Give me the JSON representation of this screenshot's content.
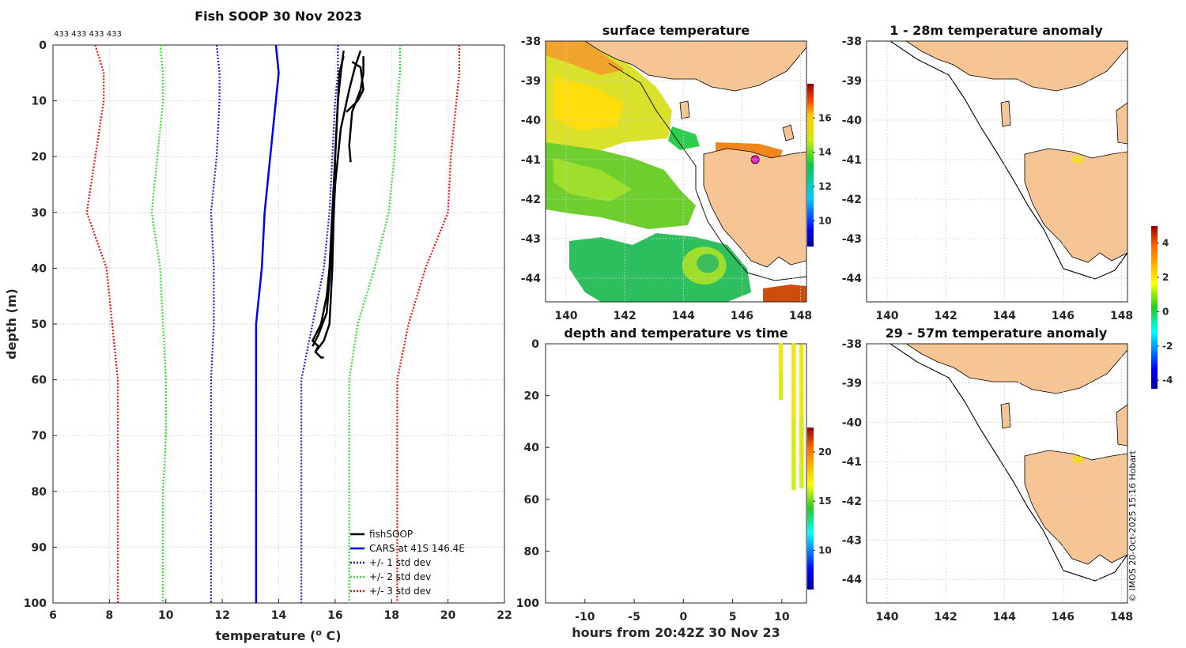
{
  "figure_title": "Fish SOOP 30 Nov 2023",
  "profile_ids": "433 433 433 433",
  "copyright": "© IMOS 20-Oct-2025 15:16 Hobart",
  "colors": {
    "land": "#f7c594",
    "cars": "#0000ee",
    "std1": "#2020d0",
    "std2": "#33dd33",
    "std3": "#ee1111",
    "fish": "#000000",
    "marker": "#ee22cc"
  },
  "chart_data": [
    {
      "id": "profile",
      "type": "line",
      "title": "Fish SOOP 30 Nov 2023",
      "xlabel": "temperature (",
      "xlabel_sup": "o",
      "xlabel_tail": " C)",
      "ylabel": "depth (m)",
      "xlim": [
        6,
        22
      ],
      "ylim": [
        0,
        100
      ],
      "xticks": [
        "6",
        "8",
        "10",
        "12",
        "14",
        "16",
        "18",
        "20",
        "22"
      ],
      "yticks": [
        "0",
        "10",
        "20",
        "30",
        "40",
        "50",
        "60",
        "70",
        "80",
        "90",
        "100"
      ],
      "legend": [
        "fishSOOP",
        "CARS at 41S 146.4E",
        "+/- 1 std dev",
        "+/- 2 std dev",
        "+/- 3 std dev"
      ],
      "series": [
        {
          "name": "CARS at 41S 146.4E",
          "style": "solid",
          "color": "#0000ee",
          "x": [
            13.9,
            14.0,
            13.9,
            13.7,
            13.5,
            13.4,
            13.2,
            13.2,
            13.2,
            13.2,
            13.2
          ],
          "y": [
            0,
            5,
            10,
            20,
            30,
            40,
            50,
            60,
            70,
            80,
            100
          ]
        },
        {
          "name": "-1 std",
          "style": "dot",
          "color": "#2020d0",
          "x": [
            11.8,
            11.9,
            11.9,
            11.8,
            11.6,
            11.7,
            11.7,
            11.6,
            11.6,
            11.6,
            11.6
          ],
          "y": [
            0,
            5,
            10,
            20,
            30,
            40,
            50,
            60,
            70,
            80,
            100
          ]
        },
        {
          "name": "+1 std",
          "style": "dot",
          "color": "#2020d0",
          "x": [
            16.1,
            16.1,
            16.0,
            15.9,
            15.8,
            15.6,
            15.2,
            14.8,
            14.8,
            14.8,
            14.8
          ],
          "y": [
            0,
            5,
            10,
            20,
            30,
            40,
            50,
            60,
            70,
            80,
            100
          ]
        },
        {
          "name": "-2 std",
          "style": "dot",
          "color": "#33dd33",
          "x": [
            9.8,
            9.9,
            9.9,
            9.7,
            9.5,
            9.8,
            9.9,
            10.0,
            10.0,
            9.9,
            9.9
          ],
          "y": [
            0,
            5,
            10,
            20,
            30,
            40,
            50,
            60,
            70,
            80,
            100
          ]
        },
        {
          "name": "+2 std",
          "style": "dot",
          "color": "#33dd33",
          "x": [
            18.3,
            18.3,
            18.2,
            18.1,
            17.9,
            17.4,
            16.8,
            16.5,
            16.5,
            16.5,
            16.5
          ],
          "y": [
            0,
            5,
            10,
            20,
            30,
            40,
            50,
            60,
            70,
            80,
            100
          ]
        },
        {
          "name": "-3 std",
          "style": "dot",
          "color": "#ee1111",
          "x": [
            7.5,
            7.8,
            7.8,
            7.5,
            7.2,
            7.9,
            8.1,
            8.3,
            8.3,
            8.3,
            8.3
          ],
          "y": [
            0,
            5,
            10,
            20,
            30,
            40,
            50,
            60,
            70,
            80,
            100
          ]
        },
        {
          "name": "+3 std",
          "style": "dot",
          "color": "#ee1111",
          "x": [
            20.4,
            20.4,
            20.3,
            20.1,
            20.0,
            19.2,
            18.6,
            18.2,
            18.2,
            18.2,
            18.2
          ],
          "y": [
            0,
            5,
            10,
            20,
            30,
            40,
            50,
            60,
            70,
            80,
            100
          ]
        },
        {
          "name": "fishSOOP 1",
          "style": "solid",
          "color": "#000000",
          "x": [
            16.3,
            16.2,
            16.1,
            16.0,
            15.95,
            15.9,
            15.85,
            15.8,
            15.6,
            15.3,
            15.5,
            15.6
          ],
          "y": [
            1,
            5,
            10,
            20,
            30,
            40,
            45,
            50,
            53,
            55,
            56,
            56
          ]
        },
        {
          "name": "fishSOOP 2",
          "style": "solid",
          "color": "#000000",
          "x": [
            16.3,
            16.15,
            16.1,
            16.0,
            15.9,
            15.8,
            15.7,
            15.5,
            15.2,
            15.4,
            15.3
          ],
          "y": [
            2,
            5,
            10,
            20,
            30,
            40,
            45,
            50,
            53,
            54,
            55
          ]
        },
        {
          "name": "fishSOOP 3",
          "style": "solid",
          "color": "#000000",
          "x": [
            16.9,
            16.7,
            16.5,
            16.2,
            16.0,
            15.9,
            15.8,
            15.7,
            15.4,
            15.2
          ],
          "y": [
            1,
            4,
            8,
            15,
            25,
            35,
            42,
            48,
            52,
            54
          ]
        },
        {
          "name": "fishSOOP 4",
          "style": "solid",
          "color": "#000000",
          "x": [
            17.0,
            17.0,
            16.9,
            16.6,
            16.55,
            16.5,
            16.55
          ],
          "y": [
            2,
            5,
            8,
            12,
            15,
            18,
            21
          ]
        },
        {
          "name": "fishSOOP 5",
          "style": "solid",
          "color": "#000000",
          "x": [
            16.6,
            16.9,
            17.0,
            16.8,
            16.4
          ],
          "y": [
            3,
            4,
            8,
            10,
            12
          ]
        }
      ]
    },
    {
      "id": "sst",
      "type": "heatmap",
      "title": "surface temperature",
      "xlim": [
        139.3,
        148.2
      ],
      "ylim": [
        -44.6,
        -38
      ],
      "xticks": [
        "140",
        "142",
        "144",
        "146",
        "148"
      ],
      "yticks": [
        "-38",
        "-39",
        "-40",
        "-41",
        "-42",
        "-43",
        "-44"
      ],
      "colorbar": {
        "min": 8.5,
        "max": 18,
        "ticks": [
          "10",
          "12",
          "14",
          "16"
        ]
      }
    },
    {
      "id": "dtt",
      "type": "scatter",
      "title": "depth and temperature vs time",
      "xlabel": "hours from 20:42Z 30 Nov 23",
      "xlim": [
        -14,
        12.5
      ],
      "ylim": [
        0,
        100
      ],
      "xticks": [
        "-10",
        "-5",
        "0",
        "5",
        "10"
      ],
      "yticks": [
        "0",
        "20",
        "40",
        "60",
        "80",
        "100"
      ],
      "colorbar": {
        "min": 6,
        "max": 22.5,
        "ticks": [
          "10",
          "15",
          "20"
        ]
      },
      "casts": [
        {
          "hour": 9.9,
          "depth_min": 0.5,
          "depth_max": 21,
          "temp": 16.6
        },
        {
          "hour": 11.2,
          "depth_min": 0.5,
          "depth_max": 56,
          "temp": 16.0
        },
        {
          "hour": 12.0,
          "depth_min": 1,
          "depth_max": 56,
          "temp": 16.1
        }
      ]
    },
    {
      "id": "anom1",
      "type": "scatter",
      "title": "1 - 28m temperature anomaly",
      "xlim": [
        139.3,
        148.2
      ],
      "ylim": [
        -44.6,
        -38
      ],
      "xticks": [
        "140",
        "142",
        "144",
        "146",
        "148"
      ],
      "yticks": [
        "-38",
        "-39",
        "-40",
        "-41",
        "-42",
        "-43",
        "-44"
      ],
      "points": [
        {
          "lon": 146.5,
          "lat": -41.0,
          "anomaly": 2.2
        }
      ]
    },
    {
      "id": "anom2",
      "type": "scatter",
      "title": "29 - 57m temperature anomaly",
      "xlim": [
        139.3,
        148.2
      ],
      "ylim": [
        -44.6,
        -38
      ],
      "xticks": [
        "140",
        "142",
        "144",
        "146",
        "148"
      ],
      "yticks": [
        "-38",
        "-39",
        "-40",
        "-41",
        "-42",
        "-43",
        "-44"
      ],
      "points": [
        {
          "lon": 146.5,
          "lat": -40.95,
          "anomaly": 2.3
        }
      ]
    },
    {
      "id": "anomaly_colorbar",
      "type": "colorbar",
      "min": -4.5,
      "max": 5,
      "ticks": [
        "-4",
        "-2",
        "0",
        "2",
        "4"
      ]
    }
  ]
}
